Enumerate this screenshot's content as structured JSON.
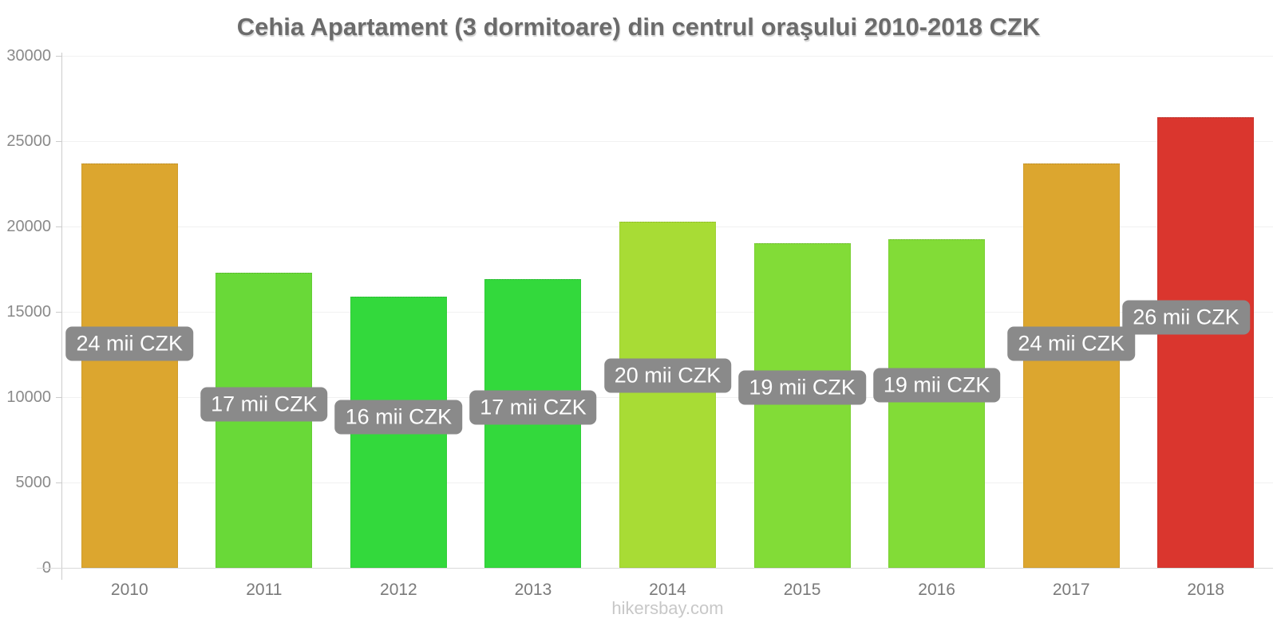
{
  "footer": {
    "text": "hikersbay.com"
  },
  "chart_data": {
    "type": "bar",
    "title": "Cehia Apartament (3 dormitoare) din centrul oraşului 2010-2018 CZK",
    "categories": [
      "2010",
      "2011",
      "2012",
      "2013",
      "2014",
      "2015",
      "2016",
      "2017",
      "2018"
    ],
    "values": [
      23700,
      17300,
      15900,
      16900,
      20300,
      19000,
      19250,
      23700,
      26400
    ],
    "bar_labels": [
      "24 mii CZK",
      "17 mii CZK",
      "16 mii CZK",
      "17 mii CZK",
      "20 mii CZK",
      "19 mii CZK",
      "19 mii CZK",
      "24 mii CZK",
      "26 mii CZK"
    ],
    "colors": [
      "#DCA62F",
      "#69D938",
      "#33D93C",
      "#33D93C",
      "#A8DC35",
      "#82DC37",
      "#82DC37",
      "#DCA62F",
      "#DA362E"
    ],
    "xlabel": "",
    "ylabel": "",
    "ylim": [
      0,
      30000
    ],
    "yticks": [
      0,
      5000,
      10000,
      15000,
      20000,
      25000,
      30000
    ],
    "currency": "CZK",
    "grid": true,
    "legend": "none",
    "label_box_color": "#8A8A8A",
    "label_text_color": "#FFFFFF"
  }
}
